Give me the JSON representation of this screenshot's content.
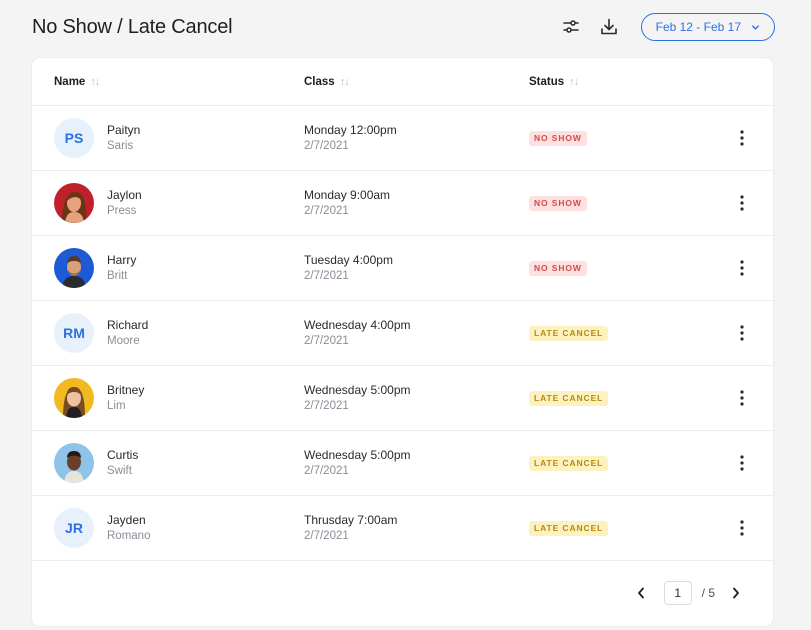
{
  "header": {
    "title": "No Show / Late Cancel",
    "filter_icon": "sliders-icon",
    "download_icon": "download-icon",
    "date_range": "Feb 12 - Feb 17"
  },
  "table": {
    "columns": {
      "name": "Name",
      "class": "Class",
      "status": "Status"
    },
    "rows": [
      {
        "first": "Paityn",
        "last": "Saris",
        "initials": "PS",
        "time": "Monday 12:00pm",
        "date": "2/7/2021",
        "status": "NO SHOW"
      },
      {
        "first": "Jaylon",
        "last": "Press",
        "time": "Monday 9:00am",
        "date": "2/7/2021",
        "status": "NO SHOW"
      },
      {
        "first": "Harry",
        "last": "Britt",
        "time": "Tuesday 4:00pm",
        "date": "2/7/2021",
        "status": "NO SHOW"
      },
      {
        "first": "Richard",
        "last": "Moore",
        "initials": "RM",
        "time": "Wednesday 4:00pm",
        "date": "2/7/2021",
        "status": "LATE CANCEL"
      },
      {
        "first": "Britney",
        "last": "Lim",
        "time": "Wednesday 5:00pm",
        "date": "2/7/2021",
        "status": "LATE CANCEL"
      },
      {
        "first": "Curtis",
        "last": "Swift",
        "time": "Wednesday 5:00pm",
        "date": "2/7/2021",
        "status": "LATE CANCEL"
      },
      {
        "first": "Jayden",
        "last": "Romano",
        "initials": "JR",
        "time": "Thrusday 7:00am",
        "date": "2/7/2021",
        "status": "LATE CANCEL"
      }
    ]
  },
  "pagination": {
    "current": "1",
    "total": "/ 5"
  },
  "colors": {
    "accent": "#2f6fe4",
    "no_show_bg": "#fde0e0",
    "no_show_text": "#d24d4d",
    "late_bg": "#fdf2bf",
    "late_text": "#b58a10"
  }
}
